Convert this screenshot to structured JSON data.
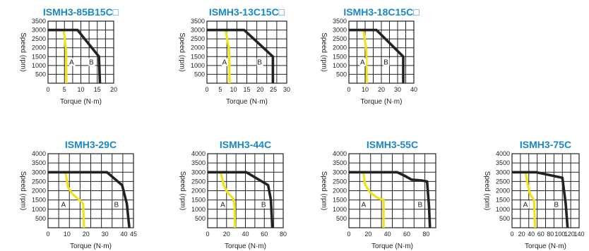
{
  "colors": {
    "title": "#1a87c9",
    "peak_curve": "#222222",
    "continuous_curve": "#f0e21a",
    "grid": "#222222"
  },
  "chart_data": [
    {
      "type": "line",
      "title": "ISMH3-85B15C□",
      "xlabel": "Torque (N·m)",
      "ylabel": "Speed (rpm)",
      "xlim": [
        0,
        20
      ],
      "ylim": [
        0,
        3500
      ],
      "x_ticks": [
        "0",
        "5",
        "10",
        "15",
        "20"
      ],
      "y_ticks": [
        "500",
        "1000",
        "1500",
        "2000",
        "2500",
        "3000",
        "3500"
      ],
      "grid": true,
      "region_labels": [
        "A",
        "B"
      ],
      "series": [
        {
          "role": "continuous",
          "points": [
            [
              0,
              3000
            ],
            [
              4.8,
              3000
            ],
            [
              5.5,
              1800
            ],
            [
              5.6,
              0
            ]
          ]
        },
        {
          "role": "peak",
          "points": [
            [
              0,
              3000
            ],
            [
              9,
              3000
            ],
            [
              15.5,
              1500
            ],
            [
              15.8,
              0
            ]
          ]
        }
      ]
    },
    {
      "type": "line",
      "title": "ISMH3-13C15C□",
      "xlabel": "Torque (N·m)",
      "ylabel": "Speed (rpm)",
      "xlim": [
        0,
        30
      ],
      "ylim": [
        0,
        3500
      ],
      "x_ticks": [
        "0",
        "5",
        "10",
        "15",
        "20",
        "25",
        "30"
      ],
      "y_ticks": [
        "500",
        "1000",
        "1500",
        "2000",
        "2500",
        "3000",
        "3500"
      ],
      "grid": true,
      "region_labels": [
        "A",
        "B"
      ],
      "series": [
        {
          "role": "continuous",
          "points": [
            [
              0,
              3000
            ],
            [
              7,
              3000
            ],
            [
              8.4,
              1800
            ],
            [
              8.5,
              0
            ]
          ]
        },
        {
          "role": "peak",
          "points": [
            [
              0,
              3000
            ],
            [
              14,
              3000
            ],
            [
              24.8,
              1500
            ],
            [
              24.8,
              0
            ]
          ]
        }
      ]
    },
    {
      "type": "line",
      "title": "ISMH3-18C15C□",
      "xlabel": "Torque (N·m)",
      "ylabel": "Speed (rpm)",
      "xlim": [
        0,
        40
      ],
      "ylim": [
        0,
        3500
      ],
      "x_ticks": [
        "0",
        "10",
        "20",
        "30",
        "40"
      ],
      "y_ticks": [
        "500",
        "1000",
        "1500",
        "2000",
        "2500",
        "3000",
        "3500"
      ],
      "grid": true,
      "region_labels": [
        "A",
        "B"
      ],
      "series": [
        {
          "role": "continuous",
          "points": [
            [
              0,
              3000
            ],
            [
              9,
              3000
            ],
            [
              10.8,
              1800
            ],
            [
              11,
              0
            ]
          ]
        },
        {
          "role": "peak",
          "points": [
            [
              0,
              3000
            ],
            [
              17,
              3000
            ],
            [
              33.5,
              1500
            ],
            [
              33.5,
              0
            ]
          ]
        }
      ]
    },
    {
      "type": "line",
      "title": "ISMH3-29C",
      "xlabel": "Torque (N·m)",
      "ylabel": "Speed (rpm)",
      "xlim": [
        0,
        45
      ],
      "ylim": [
        0,
        4000
      ],
      "x_ticks": [
        "0",
        "10",
        "20",
        "30",
        "40",
        "45"
      ],
      "y_ticks": [
        "500",
        "1000",
        "1500",
        "2000",
        "2500",
        "3000",
        "3500",
        "4000"
      ],
      "grid": true,
      "region_labels": [
        "A",
        "B"
      ],
      "series": [
        {
          "role": "continuous",
          "points": [
            [
              0,
              3000
            ],
            [
              9.2,
              3000
            ],
            [
              10.5,
              2200
            ],
            [
              13,
              1800
            ],
            [
              16.5,
              1500
            ],
            [
              18.5,
              1300
            ],
            [
              19,
              0
            ]
          ]
        },
        {
          "role": "peak",
          "points": [
            [
              0,
              3000
            ],
            [
              31,
              3000
            ],
            [
              39,
              2300
            ],
            [
              41.5,
              1300
            ],
            [
              42.8,
              0
            ]
          ]
        }
      ]
    },
    {
      "type": "line",
      "title": "ISMH3-44C",
      "xlabel": "Torque (N·m)",
      "ylabel": "Speed (rpm)",
      "xlim": [
        0,
        80
      ],
      "ylim": [
        0,
        4000
      ],
      "x_ticks": [
        "0",
        "20",
        "40",
        "60",
        "80"
      ],
      "y_ticks": [
        "500",
        "1000",
        "1500",
        "2000",
        "2500",
        "3000",
        "3500",
        "4000"
      ],
      "grid": true,
      "region_labels": [
        "A",
        "B"
      ],
      "series": [
        {
          "role": "continuous",
          "points": [
            [
              0,
              3000
            ],
            [
              14,
              3000
            ],
            [
              17,
              2300
            ],
            [
              21,
              1900
            ],
            [
              27,
              1600
            ],
            [
              28.5,
              1200
            ],
            [
              29,
              0
            ]
          ]
        },
        {
          "role": "peak",
          "points": [
            [
              0,
              3000
            ],
            [
              41,
              3000
            ],
            [
              64,
              2300
            ],
            [
              67,
              1500
            ],
            [
              68.5,
              0
            ]
          ]
        }
      ]
    },
    {
      "type": "line",
      "title": "ISMH3-55C",
      "xlabel": "Torque (N·m)",
      "ylabel": "Speed (rpm)",
      "xlim": [
        0,
        90
      ],
      "ylim": [
        0,
        4000
      ],
      "x_ticks": [
        "0",
        "20",
        "40",
        "60",
        "80"
      ],
      "y_ticks": [
        "500",
        "1000",
        "1500",
        "2000",
        "2500",
        "3000",
        "3500",
        "4000"
      ],
      "grid": true,
      "region_labels": [
        "A",
        "B"
      ],
      "series": [
        {
          "role": "continuous",
          "points": [
            [
              0,
              3000
            ],
            [
              15,
              3000
            ],
            [
              17,
              2300
            ],
            [
              22,
              1900
            ],
            [
              30,
              1600
            ],
            [
              36,
              1500
            ],
            [
              36,
              0
            ]
          ]
        },
        {
          "role": "peak",
          "points": [
            [
              0,
              3000
            ],
            [
              50,
              3000
            ],
            [
              58,
              2800
            ],
            [
              65,
              2600
            ],
            [
              76,
              2550
            ],
            [
              81,
              2500
            ],
            [
              83,
              1200
            ],
            [
              84,
              0
            ]
          ]
        }
      ]
    },
    {
      "type": "line",
      "title": "ISMH3-75C",
      "xlabel": "Torque (N·m)",
      "ylabel": "Speed (rpm)",
      "xlim": [
        0,
        140
      ],
      "ylim": [
        0,
        4000
      ],
      "x_ticks": [
        "0",
        "20",
        "40",
        "60",
        "80",
        "100",
        "120",
        "140"
      ],
      "y_ticks": [
        "500",
        "1000",
        "1500",
        "2000",
        "2500",
        "3000",
        "3500",
        "4000"
      ],
      "grid": true,
      "region_labels": [
        "A",
        "B"
      ],
      "series": [
        {
          "role": "continuous",
          "points": [
            [
              0,
              3000
            ],
            [
              28,
              3000
            ],
            [
              33,
              2300
            ],
            [
              38,
              1800
            ],
            [
              46,
              1500
            ],
            [
              48,
              0
            ]
          ]
        },
        {
          "role": "peak",
          "points": [
            [
              0,
              3000
            ],
            [
              50,
              3000
            ],
            [
              105,
              2700
            ],
            [
              112,
              1300
            ],
            [
              116,
              0
            ]
          ]
        }
      ]
    }
  ]
}
